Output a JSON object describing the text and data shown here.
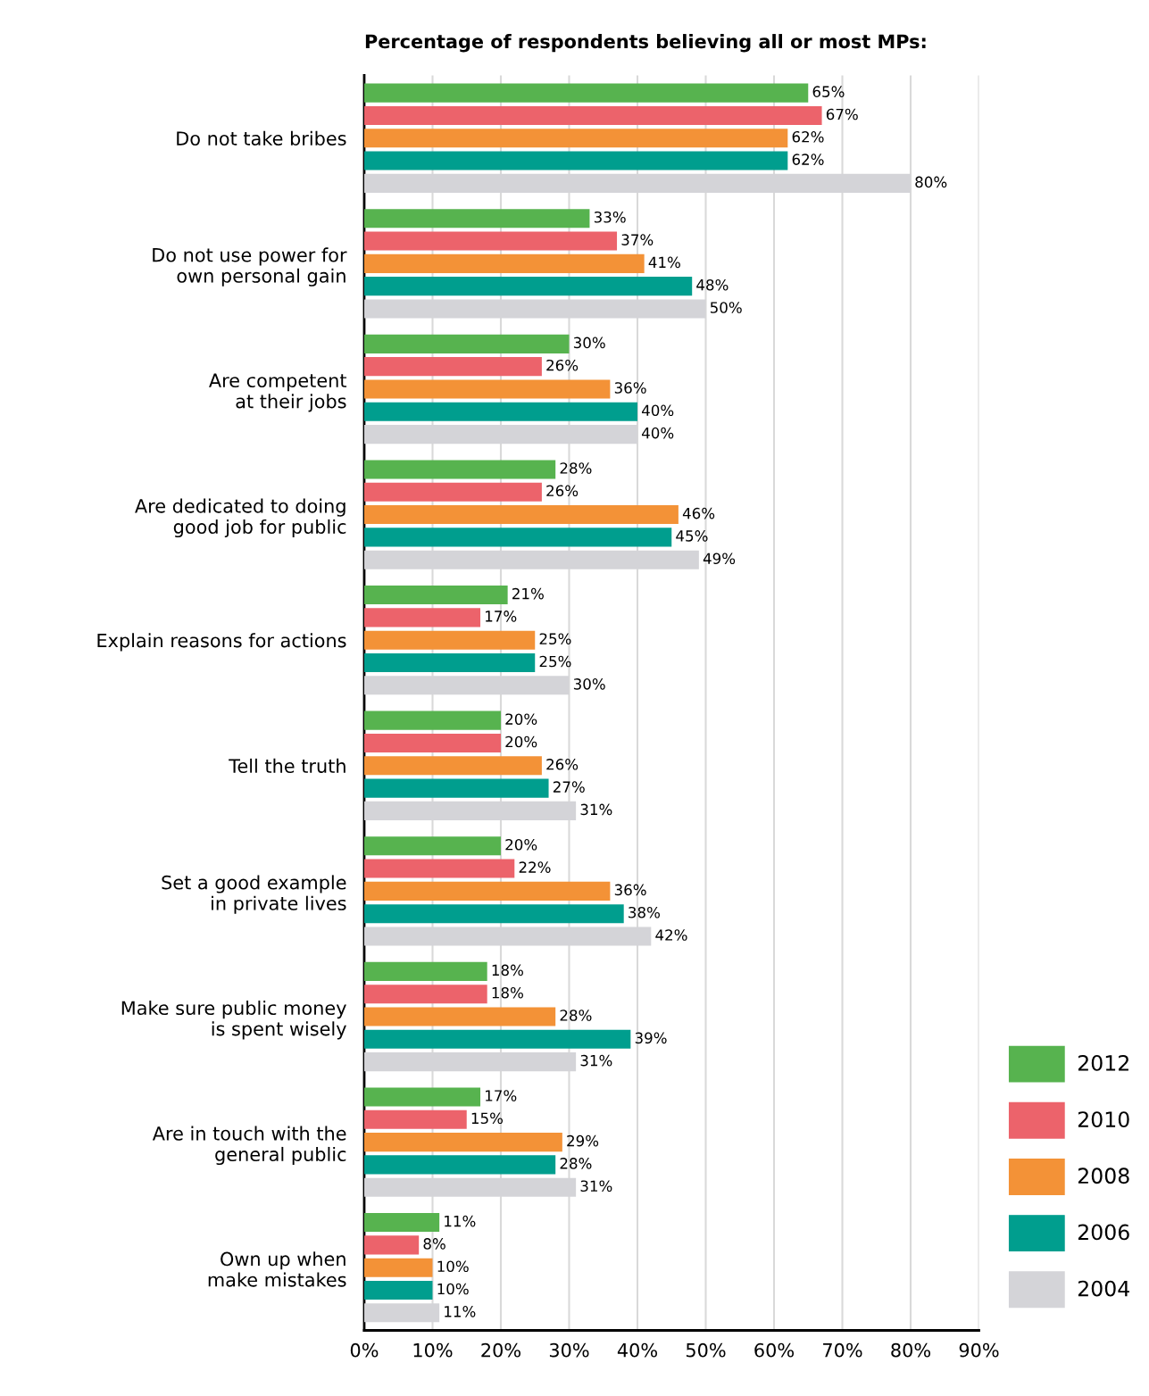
{
  "chart_data": {
    "type": "bar",
    "orientation": "horizontal",
    "title": "Percentage of respondents believing all or most MPs:",
    "categories": [
      "Do not take bribes",
      "Do not use power for\nown personal gain",
      "Are competent\nat their jobs",
      "Are dedicated to doing\ngood job for public",
      "Explain reasons for actions",
      "Tell the truth",
      "Set a good example\nin private lives",
      "Make sure public money\nis spent wisely",
      "Are in touch with the\ngeneral public",
      "Own up when\nmake mistakes"
    ],
    "series": [
      {
        "name": "2012",
        "color": "#57b34f",
        "values": [
          65,
          33,
          30,
          28,
          21,
          20,
          20,
          18,
          17,
          11
        ],
        "value_labels": [
          "65%",
          "33%",
          "30%",
          "28%",
          "21%",
          "20%",
          "20%",
          "18%",
          "17%",
          "11%"
        ]
      },
      {
        "name": "2010",
        "color": "#ec636b",
        "values": [
          67,
          37,
          26,
          26,
          17,
          20,
          22,
          18,
          15,
          8
        ],
        "value_labels": [
          "67%",
          "37%",
          "26%",
          "26%",
          "17%",
          "20%",
          "22%",
          "18%",
          "15%",
          "8%"
        ]
      },
      {
        "name": "2008",
        "color": "#f39237",
        "values": [
          62,
          41,
          36,
          46,
          25,
          26,
          36,
          28,
          29,
          10
        ],
        "value_labels": [
          "62%",
          "41%",
          "36%",
          "46%",
          "25%",
          "26%",
          "36%",
          "28%",
          "29%",
          "10%"
        ]
      },
      {
        "name": "2006",
        "color": "#009e8e",
        "values": [
          62,
          48,
          40,
          45,
          25,
          27,
          38,
          39,
          28,
          10
        ],
        "value_labels": [
          "62%",
          "48%",
          "40%",
          "45%",
          "25%",
          "27%",
          "38%",
          "39%",
          "28%",
          "10%"
        ]
      },
      {
        "name": "2004",
        "color": "#d4d4d8",
        "values": [
          80,
          50,
          40,
          49,
          30,
          31,
          42,
          31,
          31,
          11
        ],
        "value_labels": [
          "80%",
          "50%",
          "40%",
          "49%",
          "30%",
          "31%",
          "42%",
          "31%",
          "31%",
          "11%"
        ]
      }
    ],
    "xlim": [
      0,
      90
    ],
    "xticks": [
      {
        "value": 0,
        "label": "0%"
      },
      {
        "value": 10,
        "label": "10%"
      },
      {
        "value": 20,
        "label": "20%"
      },
      {
        "value": 30,
        "label": "30%"
      },
      {
        "value": 40,
        "label": "40%"
      },
      {
        "value": 50,
        "label": "50%"
      },
      {
        "value": 60,
        "label": "60%"
      },
      {
        "value": 70,
        "label": "70%"
      },
      {
        "value": 80,
        "label": "80%"
      },
      {
        "value": 90,
        "label": "90%"
      }
    ],
    "grid": "x",
    "legend": "bottom right"
  }
}
